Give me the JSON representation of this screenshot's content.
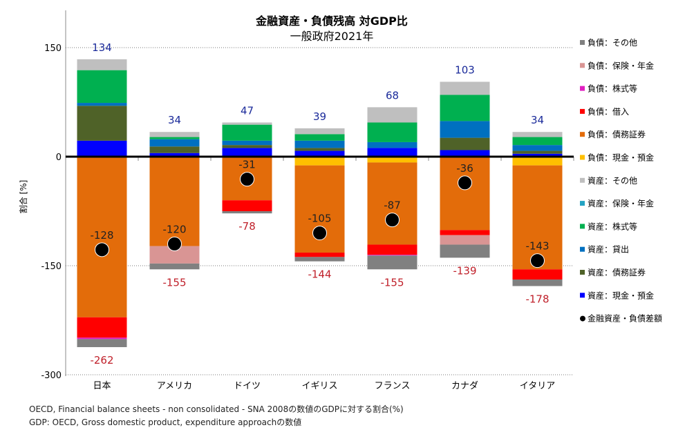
{
  "chart_data": {
    "type": "bar",
    "stacked": true,
    "title": "金融資産・負債残高 対GDP比",
    "subtitle": "一般政府2021年",
    "ylabel": "割合 [%]",
    "ylim": [
      -300,
      150
    ],
    "yticks": [
      150,
      0,
      -150,
      -300
    ],
    "grid": "horizontal dotted",
    "legend_position": "right",
    "categories": [
      "日本",
      "アメリカ",
      "ドイツ",
      "イギリス",
      "フランス",
      "カナダ",
      "イタリア"
    ],
    "series": [
      {
        "name": "資産：現金・預金",
        "color": "#0000ff",
        "values": [
          22,
          5,
          12,
          8,
          12,
          9,
          4
        ]
      },
      {
        "name": "資産：債務証券",
        "color": "#4f6228",
        "values": [
          48,
          9,
          4,
          4,
          0,
          17,
          4
        ]
      },
      {
        "name": "資産：貸出",
        "color": "#0070c0",
        "values": [
          4,
          10,
          6,
          10,
          8,
          23,
          8
        ]
      },
      {
        "name": "資産：株式等",
        "color": "#00b050",
        "values": [
          45,
          3,
          22,
          9,
          27,
          36,
          11
        ]
      },
      {
        "name": "資産：保険・年金",
        "color": "#23a3c3",
        "values": [
          0,
          0,
          0,
          0,
          0,
          0,
          0
        ]
      },
      {
        "name": "資産：その他",
        "color": "#bfbfbf",
        "values": [
          15,
          7,
          3,
          8,
          21,
          18,
          7
        ]
      },
      {
        "name": "負債：現金・預金",
        "color": "#ffc000",
        "values": [
          0,
          0,
          0,
          -12,
          -8,
          0,
          -12
        ]
      },
      {
        "name": "負債：債務証券",
        "color": "#e36c0a",
        "values": [
          -221,
          -123,
          -60,
          -120,
          -113,
          -101,
          -143
        ]
      },
      {
        "name": "負債：借入",
        "color": "#ff0000",
        "values": [
          -28,
          0,
          -15,
          -6,
          -14,
          -7,
          -14
        ]
      },
      {
        "name": "負債：株式等",
        "color": "#e020c0",
        "values": [
          -2,
          0,
          0,
          0,
          -1,
          0,
          0
        ]
      },
      {
        "name": "負債：保険・年金",
        "color": "#d99594",
        "values": [
          0,
          -24,
          0,
          0,
          0,
          -13,
          0
        ]
      },
      {
        "name": "負債：その他",
        "color": "#808080",
        "values": [
          -11,
          -8,
          -3,
          -6,
          -19,
          -18,
          -9
        ]
      }
    ],
    "asset_totals": [
      134,
      34,
      47,
      39,
      68,
      103,
      34
    ],
    "liability_totals": [
      -262,
      -155,
      -78,
      -144,
      -155,
      -139,
      -178
    ],
    "net": {
      "name": "金融資産・負債差額",
      "values": [
        -128,
        -120,
        -31,
        -105,
        -87,
        -36,
        -143
      ]
    },
    "legend_order": [
      "負債：その他",
      "負債：保険・年金",
      "負債：株式等",
      "負債：借入",
      "負債：債務証券",
      "負債：現金・預金",
      "資産：その他",
      "資産：保険・年金",
      "資産：株式等",
      "資産：貸出",
      "資産：債務証券",
      "資産：現金・預金",
      "金融資産・負債差額"
    ]
  },
  "footnotes": [
    "OECD, Financial balance sheets - non consolidated - SNA 2008の数値のGDPに対する割合(%)",
    "GDP: OECD, Gross domestic product, expenditure approachの数値"
  ]
}
